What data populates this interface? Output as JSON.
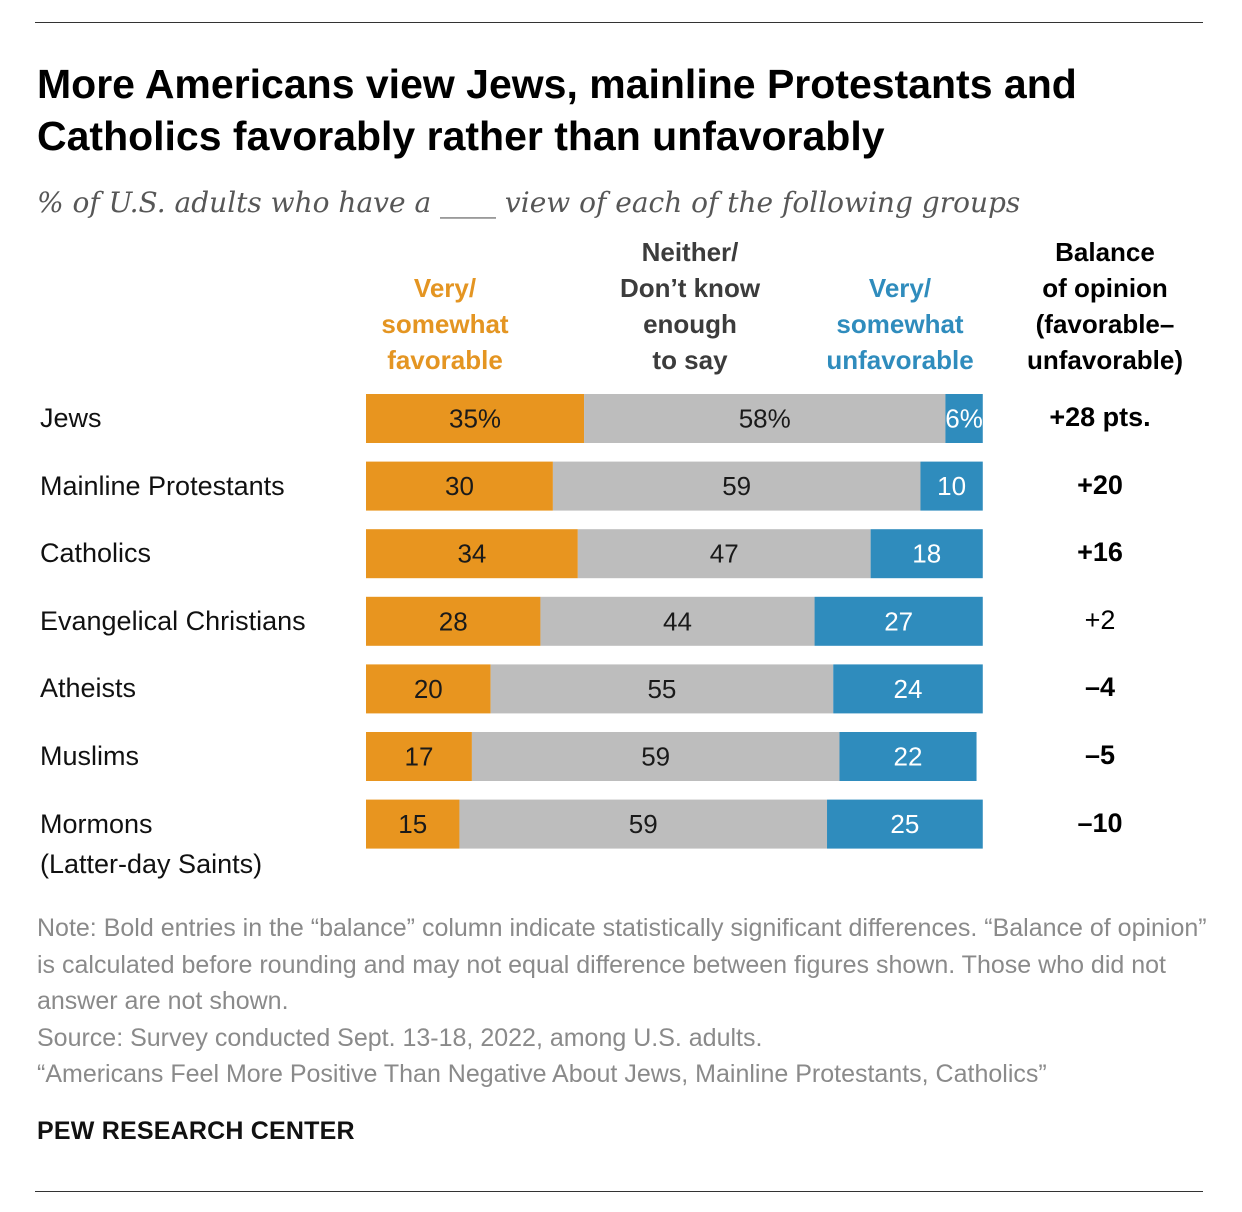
{
  "title": "More Americans view Jews, mainline Protestants and Catholics favorably rather than unfavorably",
  "subtitle": "% of U.S. adults who have a ____ view of each of the following groups",
  "headers": {
    "favorable": "Very/\nsomewhat\nfavorable",
    "neither": "Neither/\nDon’t know\nenough\nto say",
    "unfavorable": "Very/\nsomewhat\nunfavorable",
    "balance": "Balance\nof opinion\n(favorable–\nunfavorable)"
  },
  "colors": {
    "favorable": "#e8951f",
    "neither": "#bdbdbd",
    "unfavorable": "#2f8cbd"
  },
  "chart_data": {
    "type": "bar",
    "orientation": "horizontal",
    "stacked": true,
    "categories": [
      "Jews",
      "Mainline Protestants",
      "Catholics",
      "Evangelical Christians",
      "Atheists",
      "Muslims",
      "Mormons\n(Latter-day Saints)"
    ],
    "series": [
      {
        "name": "Very/ somewhat favorable",
        "values": [
          35,
          30,
          34,
          28,
          20,
          17,
          15
        ],
        "labels": [
          "35%",
          "30",
          "34",
          "28",
          "20",
          "17",
          "15"
        ]
      },
      {
        "name": "Neither/ Don’t know enough to say",
        "values": [
          58,
          59,
          47,
          44,
          55,
          59,
          59
        ],
        "labels": [
          "58%",
          "59",
          "47",
          "44",
          "55",
          "59",
          "59"
        ]
      },
      {
        "name": "Very/ somewhat unfavorable",
        "values": [
          6,
          10,
          18,
          27,
          24,
          22,
          25
        ],
        "labels": [
          "6%",
          "10",
          "18",
          "27",
          "24",
          "22",
          "25"
        ]
      }
    ],
    "balance": [
      {
        "label": "+28 pts.",
        "bold": true
      },
      {
        "label": "+20",
        "bold": true
      },
      {
        "label": "+16",
        "bold": true
      },
      {
        "label": "+2",
        "bold": false
      },
      {
        "label": "–4",
        "bold": true
      },
      {
        "label": "–5",
        "bold": true
      },
      {
        "label": "–10",
        "bold": true
      }
    ],
    "xlim": [
      0,
      100
    ]
  },
  "notes": {
    "note_prefix": "Note:",
    "note_text": " Bold entries in the “balance” column indicate statistically significant differences. “Balance of opinion” is calculated before rounding and may not equal difference between figures shown. Those who did not answer are not shown.",
    "source": "Source: Survey conducted Sept. 13-18, 2022, among U.S. adults.",
    "report": "“Americans Feel More Positive Than Negative About Jews, Mainline Protestants, Catholics”"
  },
  "brand": "PEW RESEARCH CENTER"
}
